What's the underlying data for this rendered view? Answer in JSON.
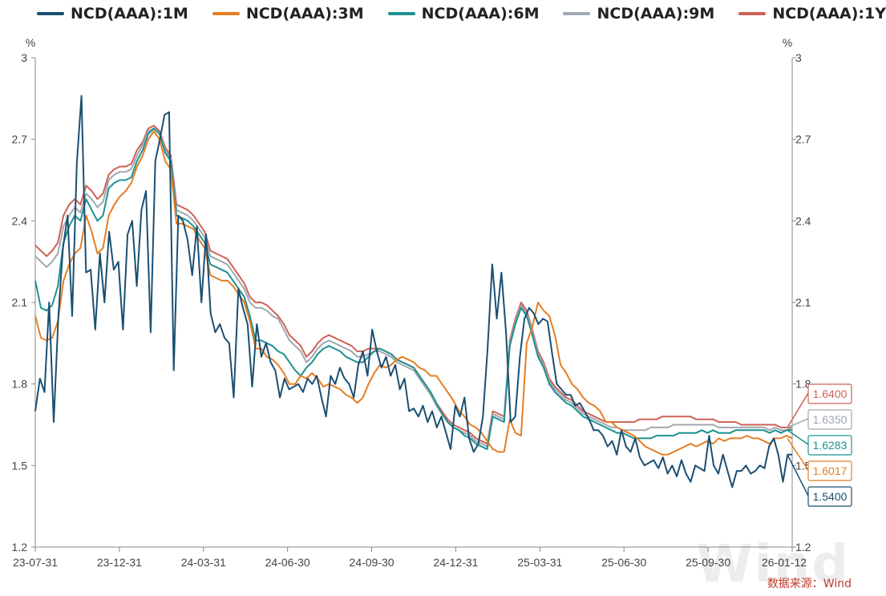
{
  "chart_data": {
    "type": "line",
    "unit_left": "%",
    "unit_right": "%",
    "ylim": [
      1.2,
      3.0
    ],
    "y_ticks": [
      "3",
      "2.7",
      "2.4",
      "2.1",
      "1.8",
      "1.5",
      "1.2"
    ],
    "x_tick_labels": [
      "23-07-31",
      "23-12-31",
      "24-03-31",
      "24-06-30",
      "24-09-30",
      "24-12-31",
      "25-03-31",
      "25-06-30",
      "25-09-30",
      "26-01-12"
    ],
    "legend_position": "top",
    "grid": false,
    "series": [
      {
        "name": "NCD(AAA):1M",
        "color": "#1b4f72",
        "last_label": "1.5400",
        "values": [
          1.7,
          1.82,
          1.77,
          2.1,
          1.66,
          2.05,
          2.3,
          2.42,
          2.05,
          2.61,
          2.86,
          2.21,
          2.22,
          2.0,
          2.28,
          2.1,
          2.36,
          2.22,
          2.25,
          2.0,
          2.35,
          2.4,
          2.16,
          2.44,
          2.51,
          1.99,
          2.62,
          2.7,
          2.79,
          2.8,
          1.85,
          2.42,
          2.4,
          2.33,
          2.2,
          2.38,
          2.1,
          2.35,
          2.06,
          1.99,
          2.02,
          1.97,
          1.95,
          1.75,
          2.15,
          2.08,
          2.02,
          1.79,
          2.02,
          1.9,
          1.95,
          1.88,
          1.85,
          1.75,
          1.82,
          1.78,
          1.79,
          1.8,
          1.77,
          1.82,
          1.8,
          1.83,
          1.75,
          1.68,
          1.83,
          1.8,
          1.86,
          1.82,
          1.8,
          1.75,
          1.87,
          1.92,
          1.83,
          2.0,
          1.92,
          1.86,
          1.9,
          1.83,
          1.87,
          1.78,
          1.82,
          1.7,
          1.71,
          1.68,
          1.72,
          1.66,
          1.7,
          1.64,
          1.68,
          1.62,
          1.56,
          1.72,
          1.68,
          1.75,
          1.6,
          1.55,
          1.58,
          1.68,
          1.93,
          2.24,
          2.04,
          2.21,
          1.99,
          1.66,
          1.68,
          1.9,
          2.04,
          2.08,
          2.06,
          2.02,
          2.04,
          2.03,
          1.91,
          1.8,
          1.78,
          1.76,
          1.76,
          1.72,
          1.73,
          1.7,
          1.67,
          1.63,
          1.63,
          1.61,
          1.57,
          1.59,
          1.54,
          1.63,
          1.57,
          1.55,
          1.6,
          1.53,
          1.5,
          1.51,
          1.52,
          1.49,
          1.53,
          1.47,
          1.5,
          1.46,
          1.52,
          1.47,
          1.44,
          1.5,
          1.49,
          1.48,
          1.61,
          1.5,
          1.47,
          1.54,
          1.48,
          1.42,
          1.48,
          1.48,
          1.5,
          1.47,
          1.48,
          1.5,
          1.49,
          1.57,
          1.6,
          1.54,
          1.44,
          1.54,
          1.54
        ]
      },
      {
        "name": "NCD(AAA):3M",
        "color": "#e67e22",
        "last_label": "1.6017",
        "values": [
          2.05,
          1.97,
          1.96,
          1.97,
          2.03,
          2.18,
          2.24,
          2.28,
          2.3,
          2.42,
          2.36,
          2.28,
          2.3,
          2.42,
          2.46,
          2.49,
          2.51,
          2.54,
          2.6,
          2.64,
          2.7,
          2.73,
          2.7,
          2.62,
          2.59,
          2.39,
          2.39,
          2.38,
          2.37,
          2.33,
          2.3,
          2.2,
          2.19,
          2.18,
          2.18,
          2.16,
          2.13,
          2.1,
          2.03,
          1.93,
          1.93,
          1.9,
          1.89,
          1.87,
          1.84,
          1.8,
          1.8,
          1.83,
          1.82,
          1.84,
          1.82,
          1.79,
          1.8,
          1.79,
          1.78,
          1.76,
          1.75,
          1.73,
          1.75,
          1.8,
          1.84,
          1.87,
          1.86,
          1.87,
          1.89,
          1.9,
          1.89,
          1.88,
          1.86,
          1.85,
          1.83,
          1.83,
          1.8,
          1.77,
          1.74,
          1.7,
          1.68,
          1.65,
          1.64,
          1.62,
          1.59,
          1.56,
          1.55,
          1.55,
          1.67,
          1.62,
          1.61,
          1.95,
          2.01,
          2.1,
          2.07,
          2.05,
          1.98,
          1.87,
          1.84,
          1.8,
          1.78,
          1.75,
          1.73,
          1.72,
          1.7,
          1.66,
          1.66,
          1.64,
          1.63,
          1.62,
          1.61,
          1.59,
          1.57,
          1.56,
          1.55,
          1.54,
          1.54,
          1.55,
          1.56,
          1.57,
          1.58,
          1.57,
          1.58,
          1.59,
          1.58,
          1.6,
          1.59,
          1.6,
          1.6,
          1.6,
          1.61,
          1.6,
          1.6,
          1.59,
          1.58,
          1.6,
          1.6,
          1.61,
          1.6
        ]
      },
      {
        "name": "NCD(AAA):6M",
        "color": "#1f9090",
        "last_label": "1.6283",
        "values": [
          2.18,
          2.08,
          2.07,
          2.09,
          2.16,
          2.32,
          2.38,
          2.42,
          2.4,
          2.48,
          2.44,
          2.4,
          2.42,
          2.52,
          2.54,
          2.55,
          2.55,
          2.56,
          2.62,
          2.66,
          2.72,
          2.74,
          2.72,
          2.65,
          2.62,
          2.42,
          2.41,
          2.4,
          2.38,
          2.35,
          2.32,
          2.24,
          2.23,
          2.22,
          2.21,
          2.18,
          2.15,
          2.12,
          2.05,
          1.96,
          1.96,
          1.95,
          1.94,
          1.92,
          1.91,
          1.88,
          1.85,
          1.83,
          1.86,
          1.88,
          1.91,
          1.93,
          1.94,
          1.93,
          1.92,
          1.9,
          1.89,
          1.88,
          1.88,
          1.9,
          1.92,
          1.93,
          1.92,
          1.91,
          1.89,
          1.88,
          1.87,
          1.86,
          1.83,
          1.8,
          1.77,
          1.73,
          1.69,
          1.66,
          1.64,
          1.63,
          1.61,
          1.6,
          1.58,
          1.57,
          1.56,
          1.68,
          1.67,
          1.66,
          1.94,
          2.02,
          2.08,
          2.05,
          1.98,
          1.9,
          1.86,
          1.8,
          1.77,
          1.75,
          1.73,
          1.72,
          1.7,
          1.68,
          1.67,
          1.66,
          1.65,
          1.64,
          1.63,
          1.62,
          1.62,
          1.61,
          1.6,
          1.6,
          1.6,
          1.6,
          1.61,
          1.61,
          1.61,
          1.61,
          1.62,
          1.62,
          1.62,
          1.62,
          1.63,
          1.62,
          1.63,
          1.62,
          1.62,
          1.62,
          1.63,
          1.63,
          1.63,
          1.63,
          1.63,
          1.63,
          1.62,
          1.63,
          1.62,
          1.63,
          1.63
        ]
      },
      {
        "name": "NCD(AAA):9M",
        "color": "#a0a8b0",
        "last_label": "1.6350",
        "values": [
          2.27,
          2.25,
          2.23,
          2.25,
          2.28,
          2.38,
          2.42,
          2.45,
          2.43,
          2.5,
          2.48,
          2.45,
          2.47,
          2.55,
          2.57,
          2.58,
          2.58,
          2.59,
          2.64,
          2.68,
          2.73,
          2.74,
          2.72,
          2.66,
          2.63,
          2.44,
          2.43,
          2.42,
          2.4,
          2.37,
          2.34,
          2.27,
          2.26,
          2.25,
          2.24,
          2.21,
          2.18,
          2.15,
          2.1,
          2.08,
          2.08,
          2.07,
          2.05,
          2.04,
          2.0,
          1.96,
          1.94,
          1.92,
          1.88,
          1.9,
          1.93,
          1.95,
          1.96,
          1.95,
          1.94,
          1.93,
          1.92,
          1.9,
          1.9,
          1.91,
          1.92,
          1.92,
          1.91,
          1.9,
          1.88,
          1.87,
          1.86,
          1.85,
          1.82,
          1.79,
          1.76,
          1.72,
          1.69,
          1.66,
          1.64,
          1.63,
          1.62,
          1.61,
          1.59,
          1.58,
          1.57,
          1.69,
          1.68,
          1.67,
          1.95,
          2.03,
          2.09,
          2.06,
          1.99,
          1.91,
          1.87,
          1.81,
          1.78,
          1.76,
          1.74,
          1.73,
          1.71,
          1.69,
          1.68,
          1.67,
          1.66,
          1.65,
          1.64,
          1.64,
          1.63,
          1.63,
          1.63,
          1.63,
          1.63,
          1.64,
          1.64,
          1.64,
          1.64,
          1.65,
          1.65,
          1.65,
          1.65,
          1.65,
          1.65,
          1.65,
          1.65,
          1.64,
          1.64,
          1.64,
          1.64,
          1.64,
          1.64,
          1.64,
          1.64,
          1.64,
          1.63,
          1.64,
          1.63,
          1.63,
          1.64
        ]
      },
      {
        "name": "NCD(AAA):1Y",
        "color": "#cd6155",
        "last_label": "1.6400",
        "values": [
          2.31,
          2.29,
          2.27,
          2.29,
          2.32,
          2.42,
          2.46,
          2.48,
          2.46,
          2.53,
          2.51,
          2.48,
          2.5,
          2.57,
          2.59,
          2.6,
          2.6,
          2.61,
          2.66,
          2.69,
          2.74,
          2.75,
          2.73,
          2.67,
          2.64,
          2.46,
          2.45,
          2.44,
          2.42,
          2.39,
          2.36,
          2.29,
          2.28,
          2.27,
          2.26,
          2.23,
          2.2,
          2.17,
          2.12,
          2.1,
          2.1,
          2.09,
          2.07,
          2.05,
          2.02,
          1.98,
          1.96,
          1.94,
          1.9,
          1.92,
          1.95,
          1.97,
          1.98,
          1.97,
          1.96,
          1.95,
          1.94,
          1.92,
          1.92,
          1.93,
          1.93,
          1.93,
          1.92,
          1.91,
          1.89,
          1.88,
          1.87,
          1.86,
          1.83,
          1.8,
          1.77,
          1.73,
          1.7,
          1.67,
          1.65,
          1.64,
          1.63,
          1.62,
          1.6,
          1.59,
          1.58,
          1.7,
          1.69,
          1.68,
          1.96,
          2.04,
          2.1,
          2.07,
          2.0,
          1.92,
          1.88,
          1.82,
          1.79,
          1.77,
          1.75,
          1.74,
          1.72,
          1.7,
          1.69,
          1.68,
          1.67,
          1.66,
          1.66,
          1.66,
          1.66,
          1.66,
          1.66,
          1.67,
          1.67,
          1.67,
          1.67,
          1.68,
          1.68,
          1.68,
          1.68,
          1.68,
          1.68,
          1.67,
          1.67,
          1.67,
          1.67,
          1.66,
          1.66,
          1.66,
          1.66,
          1.65,
          1.65,
          1.65,
          1.65,
          1.65,
          1.65,
          1.65,
          1.64,
          1.64,
          1.64
        ]
      }
    ]
  },
  "watermark": "Wind",
  "source_text": "数据来源：Wind"
}
